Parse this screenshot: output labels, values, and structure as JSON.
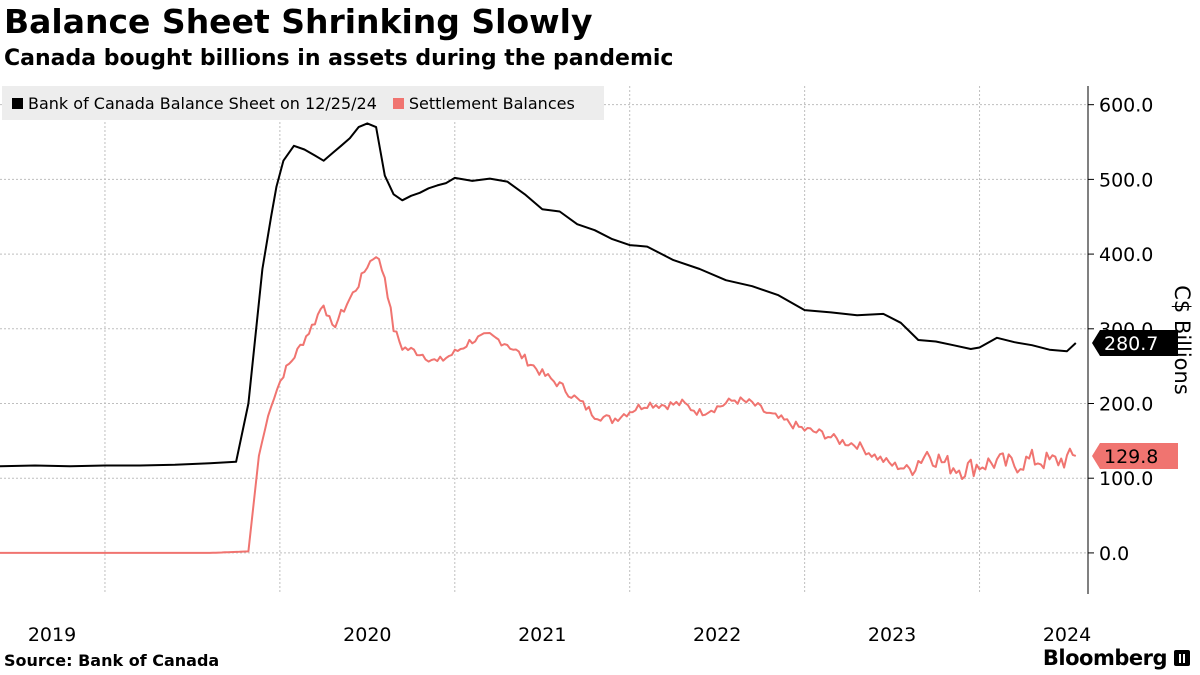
{
  "title": "Balance Sheet Shrinking Slowly",
  "subtitle": "Canada bought billions in assets during the pandemic",
  "source": "Source:  Bank of Canada",
  "brand": "Bloomberg",
  "colors": {
    "series1": "#000000",
    "series2": "#f07470",
    "grid": "#bfbfbf",
    "legend_bg": "#ededed"
  },
  "chart_data": {
    "type": "line",
    "title": "Balance Sheet Shrinking Slowly",
    "ylabel": "C$ Billions",
    "ylim": [
      -55,
      625
    ],
    "yticks": [
      0,
      100,
      200,
      300,
      400,
      500,
      600
    ],
    "ytick_labels": [
      "0.0",
      "100.0",
      "200.0",
      "300.0",
      "400.0",
      "500.0",
      "600.0"
    ],
    "xlim": [
      2018.4,
      2024.62
    ],
    "xticks": [
      2019,
      2020,
      2021,
      2022,
      2023,
      2024
    ],
    "xtick_labels": [
      "2019",
      "2020",
      "2021",
      "2022",
      "2023",
      "2024"
    ],
    "legend": [
      "Bank of Canada Balance Sheet on 12/25/24",
      "Settlement Balances"
    ],
    "series": [
      {
        "name": "Bank of Canada Balance Sheet on 12/25/24",
        "color": "#000000",
        "last_value_label": "280.7",
        "x": [
          2018.4,
          2018.6,
          2018.8,
          2019.0,
          2019.2,
          2019.4,
          2019.6,
          2019.75,
          2019.82,
          2019.9,
          2019.95,
          2019.98,
          2020.02,
          2020.08,
          2020.14,
          2020.2,
          2020.25,
          2020.3,
          2020.35,
          2020.4,
          2020.45,
          2020.5,
          2020.55,
          2020.6,
          2020.65,
          2020.7,
          2020.75,
          2020.8,
          2020.85,
          2020.9,
          2020.95,
          2021.0,
          2021.1,
          2021.2,
          2021.3,
          2021.4,
          2021.5,
          2021.6,
          2021.7,
          2021.8,
          2021.9,
          2022.0,
          2022.1,
          2022.25,
          2022.4,
          2022.55,
          2022.7,
          2022.85,
          2023.0,
          2023.15,
          2023.3,
          2023.45,
          2023.55,
          2023.65,
          2023.75,
          2023.85,
          2023.95,
          2024.0,
          2024.1,
          2024.2,
          2024.3,
          2024.4,
          2024.5,
          2024.55
        ],
        "values": [
          116,
          117,
          116,
          117,
          117,
          118,
          120,
          122,
          200,
          380,
          450,
          490,
          525,
          545,
          540,
          532,
          525,
          535,
          545,
          555,
          570,
          575,
          570,
          505,
          480,
          472,
          478,
          482,
          488,
          492,
          495,
          502,
          498,
          501,
          497,
          480,
          460,
          457,
          440,
          432,
          420,
          412,
          410,
          392,
          380,
          365,
          357,
          345,
          325,
          322,
          318,
          320,
          308,
          285,
          283,
          278,
          273,
          275,
          288,
          282,
          278,
          272,
          270,
          281
        ]
      },
      {
        "name": "Settlement Balances",
        "color": "#f07470",
        "last_value_label": "129.8",
        "x": [
          2018.4,
          2019.0,
          2019.6,
          2019.82,
          2019.88,
          2019.95,
          2020.02,
          2020.1,
          2020.2,
          2020.25,
          2020.3,
          2020.35,
          2020.4,
          2020.45,
          2020.5,
          2020.55,
          2020.6,
          2020.65,
          2020.7,
          2020.8,
          2020.9,
          2021.0,
          2021.1,
          2021.2,
          2021.3,
          2021.4,
          2021.5,
          2021.6,
          2021.7,
          2021.8,
          2021.9,
          2022.0,
          2022.1,
          2022.2,
          2022.3,
          2022.4,
          2022.5,
          2022.6,
          2022.7,
          2022.8,
          2022.9,
          2023.0,
          2023.1,
          2023.2,
          2023.3,
          2023.4,
          2023.5,
          2023.6,
          2023.7,
          2023.8,
          2023.9,
          2024.0,
          2024.1,
          2024.2,
          2024.3,
          2024.4,
          2024.5,
          2024.55
        ],
        "values": [
          0,
          0,
          0,
          2,
          130,
          200,
          240,
          270,
          310,
          335,
          300,
          320,
          340,
          360,
          385,
          400,
          370,
          300,
          275,
          268,
          255,
          268,
          285,
          290,
          280,
          260,
          240,
          225,
          205,
          185,
          178,
          190,
          200,
          198,
          200,
          188,
          195,
          205,
          200,
          185,
          175,
          165,
          160,
          150,
          145,
          130,
          118,
          112,
          135,
          120,
          112,
          118,
          122,
          118,
          125,
          122,
          125,
          129.8
        ]
      }
    ]
  }
}
